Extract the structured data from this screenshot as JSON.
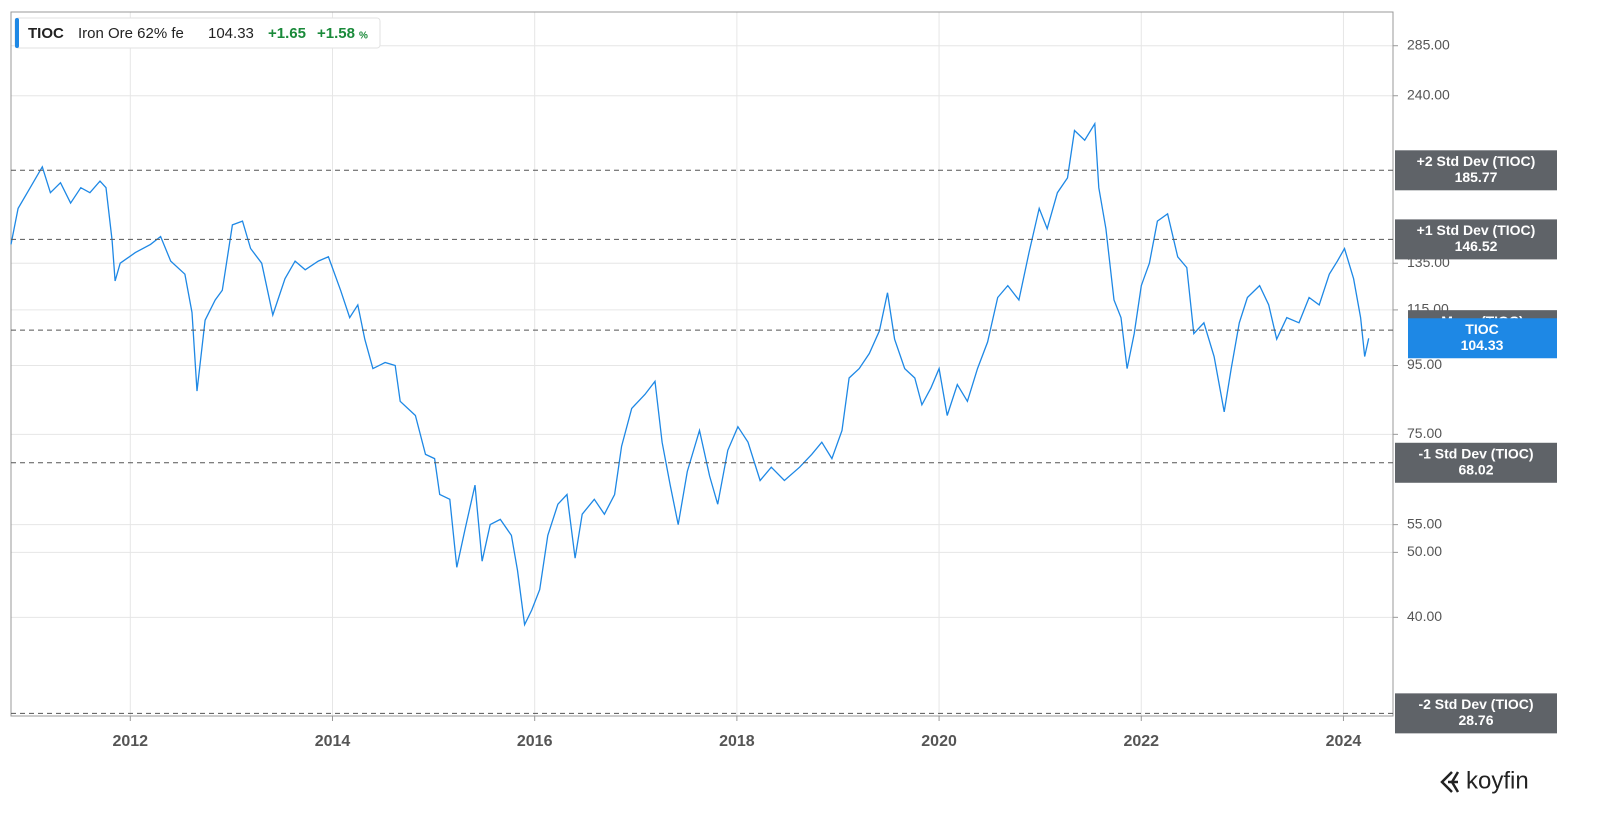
{
  "chart_data": {
    "type": "line",
    "legend": {
      "symbol": "TIOC",
      "name": "Iron Ore 62% fe",
      "price": "104.33",
      "change": "+1.65",
      "change_pct": "+1.58",
      "change_pct_unit": "%"
    },
    "log_scale": true,
    "grid": true,
    "xlim": [
      2010.82,
      2024.49
    ],
    "xticks": [
      2012,
      2014,
      2016,
      2018,
      2020,
      2022,
      2024
    ],
    "ylim": [
      28.5,
      320
    ],
    "yticks": [
      {
        "value": 285,
        "label": "285.00"
      },
      {
        "value": 240,
        "label": "240.00"
      },
      {
        "value": 135,
        "label": "135.00"
      },
      {
        "value": 115,
        "label": "115.00"
      },
      {
        "value": 95,
        "label": "95.00"
      },
      {
        "value": 75,
        "label": "75.00"
      },
      {
        "value": 55,
        "label": "55.00"
      },
      {
        "value": 50,
        "label": "50.00"
      },
      {
        "value": 40,
        "label": "40.00"
      }
    ],
    "reference_lines": [
      {
        "label": "+2 Std Dev (TIOC)",
        "value": 185.77
      },
      {
        "label": "+1 Std Dev (TIOC)",
        "value": 146.52
      },
      {
        "label": "Mean (TIOC)",
        "value": 107.27
      },
      {
        "label": "-1 Std Dev (TIOC)",
        "value": 68.02
      },
      {
        "label": "-2 Std Dev (TIOC)",
        "value": 28.76
      }
    ],
    "x": [
      2010.82,
      2010.89,
      2011.01,
      2011.13,
      2011.21,
      2011.31,
      2011.41,
      2011.51,
      2011.6,
      2011.7,
      2011.76,
      2011.82,
      2011.85,
      2011.9,
      2012.05,
      2012.2,
      2012.3,
      2012.4,
      2012.54,
      2012.61,
      2012.66,
      2012.74,
      2012.84,
      2012.91,
      2013.01,
      2013.11,
      2013.19,
      2013.3,
      2013.41,
      2013.53,
      2013.63,
      2013.73,
      2013.86,
      2013.96,
      2014.08,
      2014.17,
      2014.25,
      2014.32,
      2014.4,
      2014.52,
      2014.62,
      2014.67,
      2014.82,
      2014.92,
      2015.01,
      2015.06,
      2015.16,
      2015.23,
      2015.31,
      2015.41,
      2015.48,
      2015.56,
      2015.66,
      2015.77,
      2015.83,
      2015.9,
      2015.97,
      2016.05,
      2016.13,
      2016.23,
      2016.32,
      2016.4,
      2016.47,
      2016.59,
      2016.69,
      2016.79,
      2016.86,
      2016.96,
      2017.09,
      2017.19,
      2017.26,
      2017.34,
      2017.42,
      2017.51,
      2017.63,
      2017.73,
      2017.81,
      2017.91,
      2018.01,
      2018.11,
      2018.23,
      2018.34,
      2018.47,
      2018.62,
      2018.74,
      2018.84,
      2018.94,
      2019.04,
      2019.11,
      2019.21,
      2019.31,
      2019.41,
      2019.49,
      2019.56,
      2019.66,
      2019.76,
      2019.83,
      2019.92,
      2020.0,
      2020.08,
      2020.18,
      2020.28,
      2020.38,
      2020.48,
      2020.58,
      2020.68,
      2020.79,
      2020.89,
      2020.99,
      2021.07,
      2021.17,
      2021.27,
      2021.34,
      2021.44,
      2021.54,
      2021.58,
      2021.65,
      2021.73,
      2021.8,
      2021.86,
      2021.93,
      2022.0,
      2022.08,
      2022.16,
      2022.26,
      2022.36,
      2022.45,
      2022.52,
      2022.62,
      2022.72,
      2022.82,
      2022.89,
      2022.97,
      2023.05,
      2023.17,
      2023.26,
      2023.34,
      2023.44,
      2023.56,
      2023.66,
      2023.76,
      2023.86,
      2023.94,
      2024.01,
      2024.1,
      2024.17,
      2024.21,
      2024.25
    ],
    "series": [
      {
        "name": "TIOC",
        "color": "#1e88e5",
        "values": [
          144,
          163,
          175,
          188,
          172,
          178,
          166,
          175,
          172,
          179,
          175,
          146,
          127,
          135,
          140,
          144,
          148,
          136,
          130,
          114,
          87,
          111,
          119,
          123,
          154,
          156,
          142,
          135,
          113,
          128,
          136,
          132,
          136,
          138,
          123,
          112,
          117,
          104,
          94,
          96,
          95,
          84,
          80,
          70,
          69,
          61,
          60,
          47.5,
          54,
          63,
          48.5,
          55,
          56,
          53,
          47,
          39,
          41,
          44,
          53,
          59,
          61,
          49,
          57,
          60,
          57,
          61,
          72,
          82,
          86,
          90,
          73,
          63,
          55,
          66,
          76,
          65,
          59,
          71,
          77,
          73,
          64,
          67,
          64,
          67,
          70,
          73,
          69,
          76,
          91,
          94,
          99,
          107,
          122,
          104,
          94,
          91,
          83,
          88,
          94,
          80,
          89,
          84,
          94,
          103,
          120,
          125,
          119,
          140,
          163,
          152,
          172,
          181,
          213,
          206,
          218,
          175,
          152,
          119,
          112,
          94,
          106,
          125,
          135,
          156,
          160,
          138,
          133,
          106,
          110,
          98,
          81,
          94,
          110,
          120,
          125,
          117,
          104,
          112,
          110,
          120,
          117,
          130,
          136,
          142,
          128,
          112,
          98,
          104.33
        ]
      }
    ],
    "brand": "koyfin"
  }
}
